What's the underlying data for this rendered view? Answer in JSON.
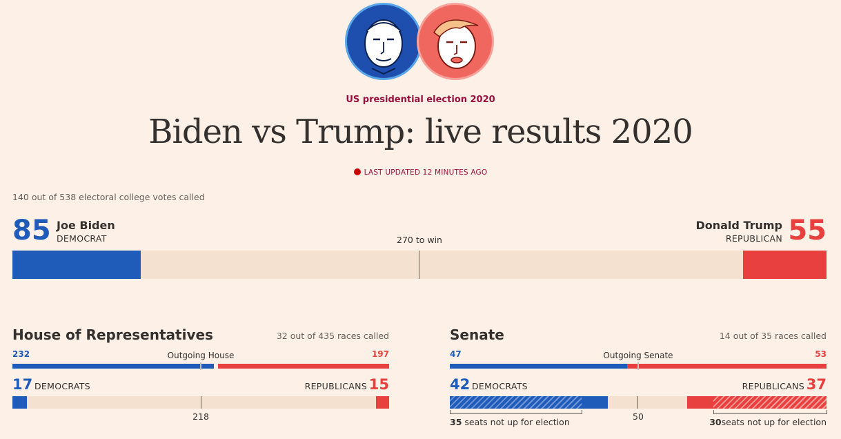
{
  "header": {
    "kicker": "US presidential election 2020",
    "title": "Biden vs Trump: live results 2020",
    "last_updated": "LAST UPDATED 12 MINUTES AGO"
  },
  "presidential": {
    "called_text": "140 out of 538 electoral college votes called",
    "to_win_label": "270 to win",
    "total": 538,
    "threshold": 270,
    "biden": {
      "votes": "85",
      "name": "Joe Biden",
      "party": "DEMOCRAT"
    },
    "trump": {
      "votes": "55",
      "name": "Donald Trump",
      "party": "REPUBLICAN"
    }
  },
  "house": {
    "title": "House of Representatives",
    "called_text": "32 out of 435 races called",
    "outgoing_label": "Outgoing House",
    "outgoing_dem": "232",
    "outgoing_rep": "197",
    "dem_count": "17",
    "dem_label": "DEMOCRATS",
    "rep_count": "15",
    "rep_label": "REPUBLICANS",
    "majority_label": "218",
    "total": 435
  },
  "senate": {
    "title": "Senate",
    "called_text": "14 out of 35 races called",
    "outgoing_label": "Outgoing Senate",
    "outgoing_dem": "47",
    "outgoing_rep": "53",
    "dem_count": "42",
    "dem_label": "DEMOCRATS",
    "rep_count": "37",
    "rep_label": "REPUBLICANS",
    "majority_label": "50",
    "dem_not_up_num": "35",
    "dem_not_up_text": "seats not up for election",
    "rep_not_up_num": "30",
    "rep_not_up_text": "seats not up for election",
    "total": 100
  },
  "colors": {
    "democrat": "#1f5bb8",
    "republican": "#e8403f",
    "background": "#fdf0e6",
    "accent": "#990f3d"
  }
}
